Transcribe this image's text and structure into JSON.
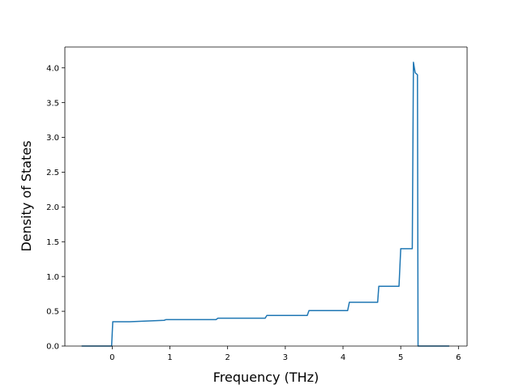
{
  "chart_data": {
    "type": "line",
    "title": "",
    "xlabel": "Frequency (THz)",
    "ylabel": "Density of States",
    "xlim": [
      -0.82,
      6.15
    ],
    "ylim": [
      0.0,
      4.3
    ],
    "xticks": [
      0,
      1,
      2,
      3,
      4,
      5,
      6
    ],
    "xtick_labels": [
      "0",
      "1",
      "2",
      "3",
      "4",
      "5",
      "6"
    ],
    "yticks": [
      0.0,
      0.5,
      1.0,
      1.5,
      2.0,
      2.5,
      3.0,
      3.5,
      4.0
    ],
    "ytick_labels": [
      "0.0",
      "0.5",
      "1.0",
      "1.5",
      "2.0",
      "2.5",
      "3.0",
      "3.5",
      "4.0"
    ],
    "grid": false,
    "legend": "none",
    "colors": {
      "line": "#1f77b4"
    },
    "series": [
      {
        "x": [
          -0.53,
          -0.01,
          0.01,
          0.3,
          0.9,
          0.93,
          1.8,
          1.83,
          2.65,
          2.68,
          3.38,
          3.41,
          4.08,
          4.11,
          4.6,
          4.62,
          4.97,
          5.0,
          5.2,
          5.22,
          5.25,
          5.29,
          5.3,
          5.84
        ],
        "y": [
          0.0,
          0.0,
          0.35,
          0.35,
          0.37,
          0.38,
          0.38,
          0.4,
          0.4,
          0.44,
          0.44,
          0.51,
          0.51,
          0.63,
          0.63,
          0.86,
          0.86,
          1.4,
          1.4,
          4.08,
          3.93,
          3.9,
          0.0,
          0.0
        ]
      }
    ]
  }
}
